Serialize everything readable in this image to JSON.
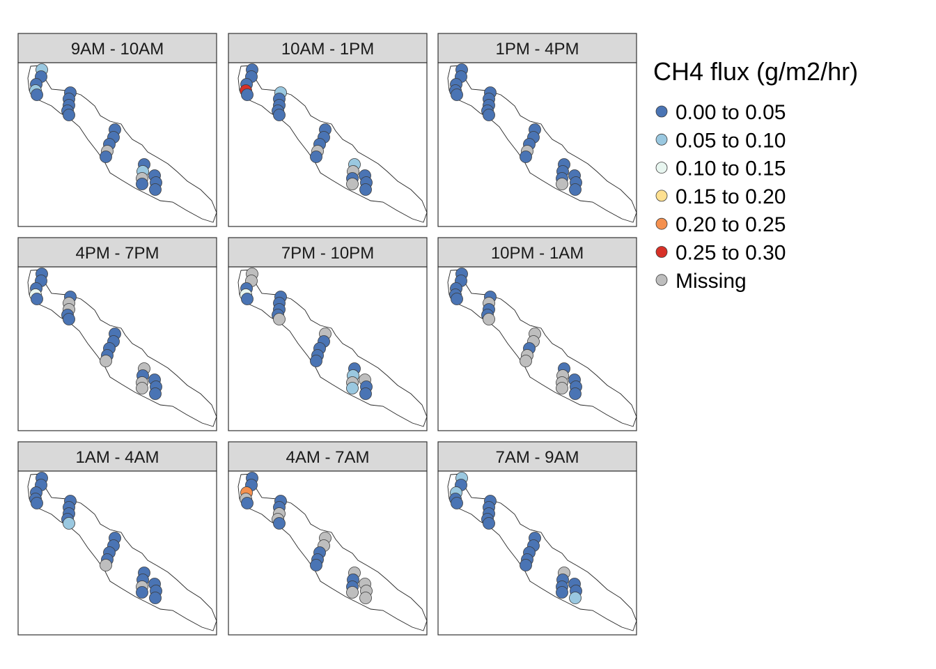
{
  "chart_data": {
    "type": "scatter",
    "variable": "CH4 flux (g/m2/hr)",
    "legend": {
      "title": "CH4 flux (g/m2/hr)",
      "placement": "right",
      "classes": [
        {
          "key": "c1",
          "label": "0.00 to 0.05",
          "color": "#4a74b4"
        },
        {
          "key": "c2",
          "label": "0.05 to 0.10",
          "color": "#9ac8e0"
        },
        {
          "key": "c3",
          "label": "0.10 to 0.15",
          "color": "#e8f6f0"
        },
        {
          "key": "c4",
          "label": "0.15 to 0.20",
          "color": "#fee090"
        },
        {
          "key": "c5",
          "label": "0.20 to 0.25",
          "color": "#f4904f"
        },
        {
          "key": "c6",
          "label": "0.25 to 0.30",
          "color": "#d73027"
        },
        {
          "key": "na",
          "label": "Missing",
          "color": "#bebebe"
        }
      ]
    },
    "sites": [
      "s1",
      "s2",
      "s3",
      "s4",
      "s5",
      "s6",
      "s7",
      "s8",
      "s9",
      "s10",
      "s11",
      "s12",
      "s13",
      "s14",
      "s15",
      "s16",
      "s17",
      "s18",
      "s19",
      "s20",
      "s21",
      "s22"
    ],
    "panels": [
      {
        "title": "9AM - 10AM",
        "classes": [
          "c2",
          "c1",
          "c1",
          "c2",
          "c1",
          "c1",
          "c1",
          "c1",
          "c1",
          "c1",
          "c1",
          "c1",
          "c1",
          "na",
          "c1",
          "c1",
          "c2",
          "na",
          "c1",
          "c1",
          "c1",
          "c1"
        ]
      },
      {
        "title": "10AM - 1PM",
        "classes": [
          "c1",
          "c1",
          "c1",
          "c6",
          "c1",
          "c2",
          "c1",
          "c1",
          "c1",
          "c1",
          "c1",
          "c1",
          "c1",
          "na",
          "c1",
          "c2",
          "na",
          "c1",
          "na",
          "c1",
          "c1",
          "c1"
        ]
      },
      {
        "title": "1PM - 4PM",
        "classes": [
          "c1",
          "c1",
          "c1",
          "c1",
          "c1",
          "c1",
          "c1",
          "c1",
          "c1",
          "c1",
          "c1",
          "c1",
          "c1",
          "na",
          "c1",
          "c1",
          "c1",
          "c1",
          "na",
          "c1",
          "c1",
          "c1"
        ]
      },
      {
        "title": "4PM - 7PM",
        "classes": [
          "c1",
          "c1",
          "c1",
          "c3",
          "c1",
          "c1",
          "na",
          "na",
          "c1",
          "c1",
          "c1",
          "c1",
          "c1",
          "c1",
          "na",
          "na",
          "c1",
          "na",
          "na",
          "c1",
          "c1",
          "c1"
        ]
      },
      {
        "title": "7PM - 10PM",
        "classes": [
          "na",
          "na",
          "c1",
          "c3",
          "c1",
          "c1",
          "c1",
          "c1",
          "c1",
          "na",
          "na",
          "c1",
          "c1",
          "c1",
          "c1",
          "c1",
          "c2",
          "na",
          "c2",
          "na",
          "c1",
          "c1"
        ]
      },
      {
        "title": "10PM - 1AM",
        "classes": [
          "c1",
          "c1",
          "c1",
          "c1",
          "c1",
          "c1",
          "na",
          "c1",
          "c1",
          "na",
          "na",
          "na",
          "c1",
          "na",
          "na",
          "c1",
          "na",
          "na",
          "na",
          "c1",
          "c1",
          "c1"
        ]
      },
      {
        "title": "1AM - 4AM",
        "classes": [
          "c1",
          "c1",
          "c1",
          "c1",
          "c1",
          "c1",
          "c1",
          "c1",
          "c1",
          "c2",
          "c1",
          "c1",
          "c1",
          "c1",
          "na",
          "c1",
          "c1",
          "na",
          "c1",
          "c1",
          "c1",
          "c1"
        ]
      },
      {
        "title": "4AM - 7AM",
        "classes": [
          "c1",
          "c1",
          "c5",
          "na",
          "c1",
          "c1",
          "c1",
          "na",
          "na",
          "c1",
          "na",
          "na",
          "c1",
          "c1",
          "c1",
          "na",
          "c1",
          "c1",
          "na",
          "na",
          "na",
          "na"
        ]
      },
      {
        "title": "7AM - 9AM",
        "classes": [
          "c2",
          "c1",
          "c2",
          "c1",
          "c1",
          "c1",
          "c1",
          "c1",
          "c1",
          "c1",
          "c1",
          "c1",
          "c1",
          "c1",
          "c1",
          "na",
          "c1",
          "c1",
          "c1",
          "c1",
          "c1",
          "c2"
        ]
      }
    ]
  }
}
